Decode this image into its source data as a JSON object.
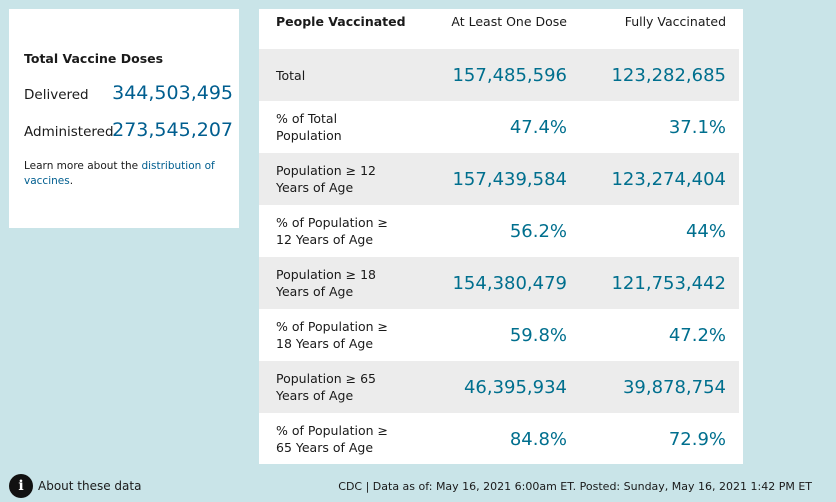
{
  "summary": {
    "title": "Total Vaccine Doses",
    "delivered_label": "Delivered",
    "delivered_value": "344,503,495",
    "administered_label": "Administered",
    "administered_value": "273,545,207",
    "note_prefix": "Learn more about the ",
    "note_link": "distribution of vaccines",
    "note_suffix": "."
  },
  "table": {
    "headers": [
      "People Vaccinated",
      "At Least One Dose",
      "Fully Vaccinated"
    ],
    "rows": [
      {
        "label": "Total",
        "one_dose": "157,485,596",
        "fully": "123,282,685"
      },
      {
        "label": "% of Total Population",
        "one_dose": "47.4%",
        "fully": "37.1%"
      },
      {
        "label": "Population ≥ 12 Years of Age",
        "one_dose": "157,439,584",
        "fully": "123,274,404"
      },
      {
        "label": "% of Population ≥ 12 Years of Age",
        "one_dose": "56.2%",
        "fully": "44%"
      },
      {
        "label": "Population ≥ 18 Years of Age",
        "one_dose": "154,380,479",
        "fully": "121,753,442"
      },
      {
        "label": "% of Population ≥ 18 Years of Age",
        "one_dose": "59.8%",
        "fully": "47.2%"
      },
      {
        "label": "Population ≥ 65 Years of Age",
        "one_dose": "46,395,934",
        "fully": "39,878,754"
      },
      {
        "label": "% of Population ≥ 65 Years of Age",
        "one_dose": "84.8%",
        "fully": "72.9%"
      }
    ]
  },
  "footer": {
    "about_label": "About these data",
    "about_icon": "info-icon",
    "source_note": "CDC | Data as of: May 16, 2021 6:00am ET. Posted: Sunday, May 16, 2021 1:42 PM ET"
  }
}
